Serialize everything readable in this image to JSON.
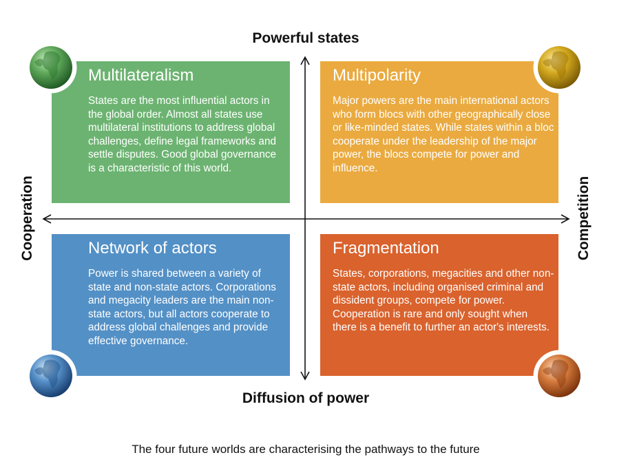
{
  "axes": {
    "top": "Powerful states",
    "bottom": "Diffusion of power",
    "left": "Cooperation",
    "right": "Competition"
  },
  "quadrants": [
    {
      "title": "Multilateralism",
      "text": "States are the most influential actors in the global order. Almost all states use multilateral institutions to address global challenges, define legal frameworks and settle disputes. Good global governance is a characteristic of this world.",
      "color": "#6cb371"
    },
    {
      "title": "Multipolarity",
      "text": "Major powers are the main international actors who form blocs with other geographically close or like-minded states. While states within a bloc cooperate under the leadership of the major power, the blocs compete for power and influence.",
      "color": "#eaaa3f"
    },
    {
      "title": "Network of actors",
      "text": "Power is shared between a variety of state and non-state actors. Corporations and megacity leaders are the main non-state actors, but all actors cooperate to address global challenges and provide effective governance.",
      "color": "#5390c6"
    },
    {
      "title": "Fragmentation",
      "text": "States, corporations, megacities and other non-state actors, including organised criminal and dissident groups, compete for power. Cooperation is rare and only sought when there is a benefit to further an actor's interests.",
      "color": "#d9622d"
    }
  ],
  "caption": "The four future worlds are characterising the pathways to the future"
}
